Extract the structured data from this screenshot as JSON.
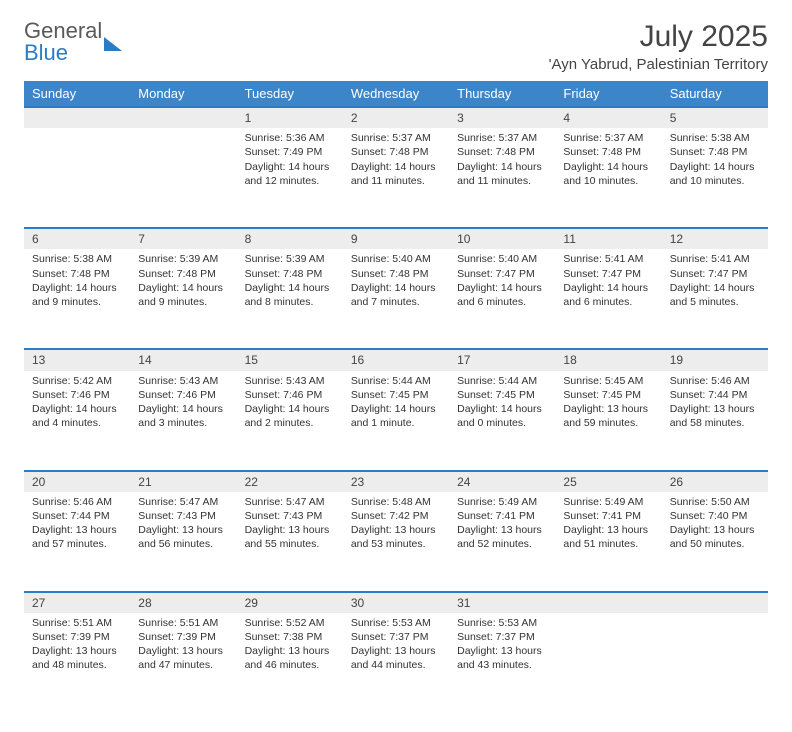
{
  "logo": {
    "line1": "General",
    "line2": "Blue"
  },
  "title": "July 2025",
  "location": "'Ayn Yabrud, Palestinian Territory",
  "colors": {
    "header_bg": "#3b85c8",
    "header_text": "#ffffff",
    "daynum_bg": "#ededed",
    "daynum_border": "#2a7cc7",
    "text": "#333333",
    "logo_gray": "#5a5a5a",
    "logo_blue": "#2a7cc7"
  },
  "fonts": {
    "title_size": 30,
    "location_size": 15,
    "weekday_size": 13,
    "daynum_size": 12,
    "body_size": 10.5
  },
  "weekdays": [
    "Sunday",
    "Monday",
    "Tuesday",
    "Wednesday",
    "Thursday",
    "Friday",
    "Saturday"
  ],
  "weeks": [
    [
      null,
      null,
      {
        "n": "1",
        "sr": "5:36 AM",
        "ss": "7:49 PM",
        "dl": "14 hours and 12 minutes."
      },
      {
        "n": "2",
        "sr": "5:37 AM",
        "ss": "7:48 PM",
        "dl": "14 hours and 11 minutes."
      },
      {
        "n": "3",
        "sr": "5:37 AM",
        "ss": "7:48 PM",
        "dl": "14 hours and 11 minutes."
      },
      {
        "n": "4",
        "sr": "5:37 AM",
        "ss": "7:48 PM",
        "dl": "14 hours and 10 minutes."
      },
      {
        "n": "5",
        "sr": "5:38 AM",
        "ss": "7:48 PM",
        "dl": "14 hours and 10 minutes."
      }
    ],
    [
      {
        "n": "6",
        "sr": "5:38 AM",
        "ss": "7:48 PM",
        "dl": "14 hours and 9 minutes."
      },
      {
        "n": "7",
        "sr": "5:39 AM",
        "ss": "7:48 PM",
        "dl": "14 hours and 9 minutes."
      },
      {
        "n": "8",
        "sr": "5:39 AM",
        "ss": "7:48 PM",
        "dl": "14 hours and 8 minutes."
      },
      {
        "n": "9",
        "sr": "5:40 AM",
        "ss": "7:48 PM",
        "dl": "14 hours and 7 minutes."
      },
      {
        "n": "10",
        "sr": "5:40 AM",
        "ss": "7:47 PM",
        "dl": "14 hours and 6 minutes."
      },
      {
        "n": "11",
        "sr": "5:41 AM",
        "ss": "7:47 PM",
        "dl": "14 hours and 6 minutes."
      },
      {
        "n": "12",
        "sr": "5:41 AM",
        "ss": "7:47 PM",
        "dl": "14 hours and 5 minutes."
      }
    ],
    [
      {
        "n": "13",
        "sr": "5:42 AM",
        "ss": "7:46 PM",
        "dl": "14 hours and 4 minutes."
      },
      {
        "n": "14",
        "sr": "5:43 AM",
        "ss": "7:46 PM",
        "dl": "14 hours and 3 minutes."
      },
      {
        "n": "15",
        "sr": "5:43 AM",
        "ss": "7:46 PM",
        "dl": "14 hours and 2 minutes."
      },
      {
        "n": "16",
        "sr": "5:44 AM",
        "ss": "7:45 PM",
        "dl": "14 hours and 1 minute."
      },
      {
        "n": "17",
        "sr": "5:44 AM",
        "ss": "7:45 PM",
        "dl": "14 hours and 0 minutes."
      },
      {
        "n": "18",
        "sr": "5:45 AM",
        "ss": "7:45 PM",
        "dl": "13 hours and 59 minutes."
      },
      {
        "n": "19",
        "sr": "5:46 AM",
        "ss": "7:44 PM",
        "dl": "13 hours and 58 minutes."
      }
    ],
    [
      {
        "n": "20",
        "sr": "5:46 AM",
        "ss": "7:44 PM",
        "dl": "13 hours and 57 minutes."
      },
      {
        "n": "21",
        "sr": "5:47 AM",
        "ss": "7:43 PM",
        "dl": "13 hours and 56 minutes."
      },
      {
        "n": "22",
        "sr": "5:47 AM",
        "ss": "7:43 PM",
        "dl": "13 hours and 55 minutes."
      },
      {
        "n": "23",
        "sr": "5:48 AM",
        "ss": "7:42 PM",
        "dl": "13 hours and 53 minutes."
      },
      {
        "n": "24",
        "sr": "5:49 AM",
        "ss": "7:41 PM",
        "dl": "13 hours and 52 minutes."
      },
      {
        "n": "25",
        "sr": "5:49 AM",
        "ss": "7:41 PM",
        "dl": "13 hours and 51 minutes."
      },
      {
        "n": "26",
        "sr": "5:50 AM",
        "ss": "7:40 PM",
        "dl": "13 hours and 50 minutes."
      }
    ],
    [
      {
        "n": "27",
        "sr": "5:51 AM",
        "ss": "7:39 PM",
        "dl": "13 hours and 48 minutes."
      },
      {
        "n": "28",
        "sr": "5:51 AM",
        "ss": "7:39 PM",
        "dl": "13 hours and 47 minutes."
      },
      {
        "n": "29",
        "sr": "5:52 AM",
        "ss": "7:38 PM",
        "dl": "13 hours and 46 minutes."
      },
      {
        "n": "30",
        "sr": "5:53 AM",
        "ss": "7:37 PM",
        "dl": "13 hours and 44 minutes."
      },
      {
        "n": "31",
        "sr": "5:53 AM",
        "ss": "7:37 PM",
        "dl": "13 hours and 43 minutes."
      },
      null,
      null
    ]
  ],
  "labels": {
    "sunrise": "Sunrise: ",
    "sunset": "Sunset: ",
    "daylight": "Daylight: "
  }
}
